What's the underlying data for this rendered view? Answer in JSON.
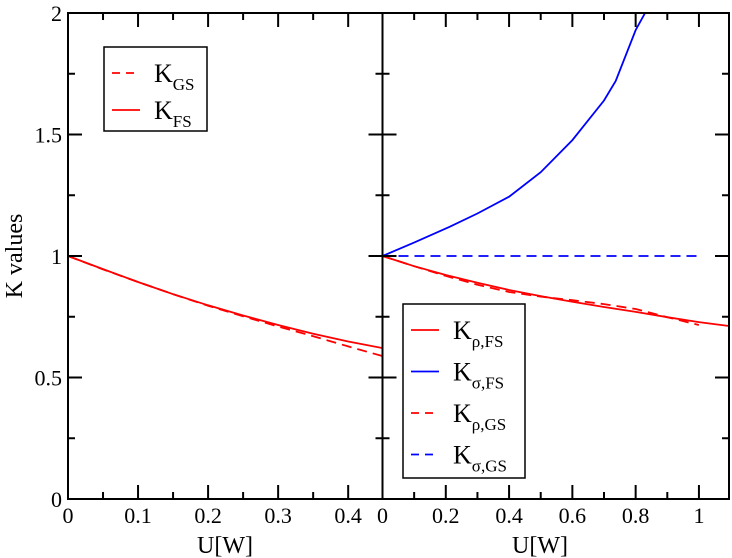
{
  "chart_data": [
    {
      "type": "line",
      "panel": "left",
      "title": "",
      "xlabel": "U[W]",
      "ylabel": "K values",
      "xlim": [
        0,
        0.449
      ],
      "ylim": [
        0,
        2
      ],
      "xticks": [
        "0",
        "0.1",
        "0.2",
        "0.3",
        "0.4"
      ],
      "yticks": [
        "0",
        "0.5",
        "1",
        "1.5",
        "2"
      ],
      "grid": false,
      "legend_position": "upper-left",
      "legend": [
        {
          "label": "K",
          "sub": "GS",
          "color": "#ff0000",
          "style": "dashed"
        },
        {
          "label": "K",
          "sub": "FS",
          "color": "#ff0000",
          "style": "solid"
        }
      ],
      "series": [
        {
          "name": "K_GS",
          "color": "#ff0000",
          "style": "dashed",
          "x": [
            0,
            0.05,
            0.1,
            0.15,
            0.2,
            0.25,
            0.3,
            0.35,
            0.4,
            0.449
          ],
          "y": [
            1.0,
            0.945,
            0.893,
            0.843,
            0.795,
            0.752,
            0.71,
            0.67,
            0.628,
            0.588
          ]
        },
        {
          "name": "K_FS",
          "color": "#ff0000",
          "style": "solid",
          "x": [
            0,
            0.05,
            0.1,
            0.15,
            0.2,
            0.25,
            0.3,
            0.35,
            0.4,
            0.449
          ],
          "y": [
            1.0,
            0.946,
            0.893,
            0.843,
            0.797,
            0.755,
            0.716,
            0.68,
            0.648,
            0.621
          ]
        }
      ]
    },
    {
      "type": "line",
      "panel": "right",
      "title": "",
      "xlabel": "U[W]",
      "ylabel": "",
      "xlim": [
        0,
        1.095
      ],
      "ylim": [
        0,
        2
      ],
      "xticks": [
        "0",
        "0.2",
        "0.4",
        "0.6",
        "0.8",
        "1"
      ],
      "yticks": [],
      "grid": false,
      "legend_position": "lower-left",
      "legend": [
        {
          "label": "K",
          "sub": "ρ,FS",
          "color": "#ff0000",
          "style": "solid"
        },
        {
          "label": "K",
          "sub": "σ,FS",
          "color": "#0000ff",
          "style": "solid"
        },
        {
          "label": "K",
          "sub": "ρ,GS",
          "color": "#ff0000",
          "style": "dashed"
        },
        {
          "label": "K",
          "sub": "σ,GS",
          "color": "#0000ff",
          "style": "dashed"
        }
      ],
      "series": [
        {
          "name": "K_rho,FS",
          "color": "#ff0000",
          "style": "solid",
          "x": [
            0,
            0.1,
            0.2,
            0.3,
            0.4,
            0.5,
            0.6,
            0.7,
            0.8,
            0.9,
            1.0,
            1.095
          ],
          "y": [
            1.0,
            0.958,
            0.922,
            0.89,
            0.86,
            0.835,
            0.812,
            0.79,
            0.77,
            0.748,
            0.728,
            0.712
          ]
        },
        {
          "name": "K_sigma,FS",
          "color": "#0000ff",
          "style": "solid",
          "x": [
            0,
            0.1,
            0.212,
            0.3,
            0.4,
            0.5,
            0.6,
            0.7,
            0.737,
            0.8,
            0.83
          ],
          "y": [
            1.0,
            1.055,
            1.12,
            1.175,
            1.244,
            1.345,
            1.477,
            1.64,
            1.72,
            1.93,
            2.0
          ]
        },
        {
          "name": "K_rho,GS",
          "color": "#ff0000",
          "style": "dashed",
          "x": [
            0,
            0.1,
            0.2,
            0.3,
            0.4,
            0.5,
            0.6,
            0.7,
            0.8,
            0.9,
            1.0
          ],
          "y": [
            1.0,
            0.958,
            0.918,
            0.882,
            0.852,
            0.833,
            0.818,
            0.802,
            0.782,
            0.748,
            0.716
          ]
        },
        {
          "name": "K_sigma,GS",
          "color": "#0000ff",
          "style": "dashed",
          "x": [
            0,
            0.2,
            0.4,
            0.6,
            0.8,
            1.0
          ],
          "y": [
            1.0,
            1.0,
            1.0,
            1.0,
            1.0,
            1.0
          ]
        }
      ]
    }
  ]
}
